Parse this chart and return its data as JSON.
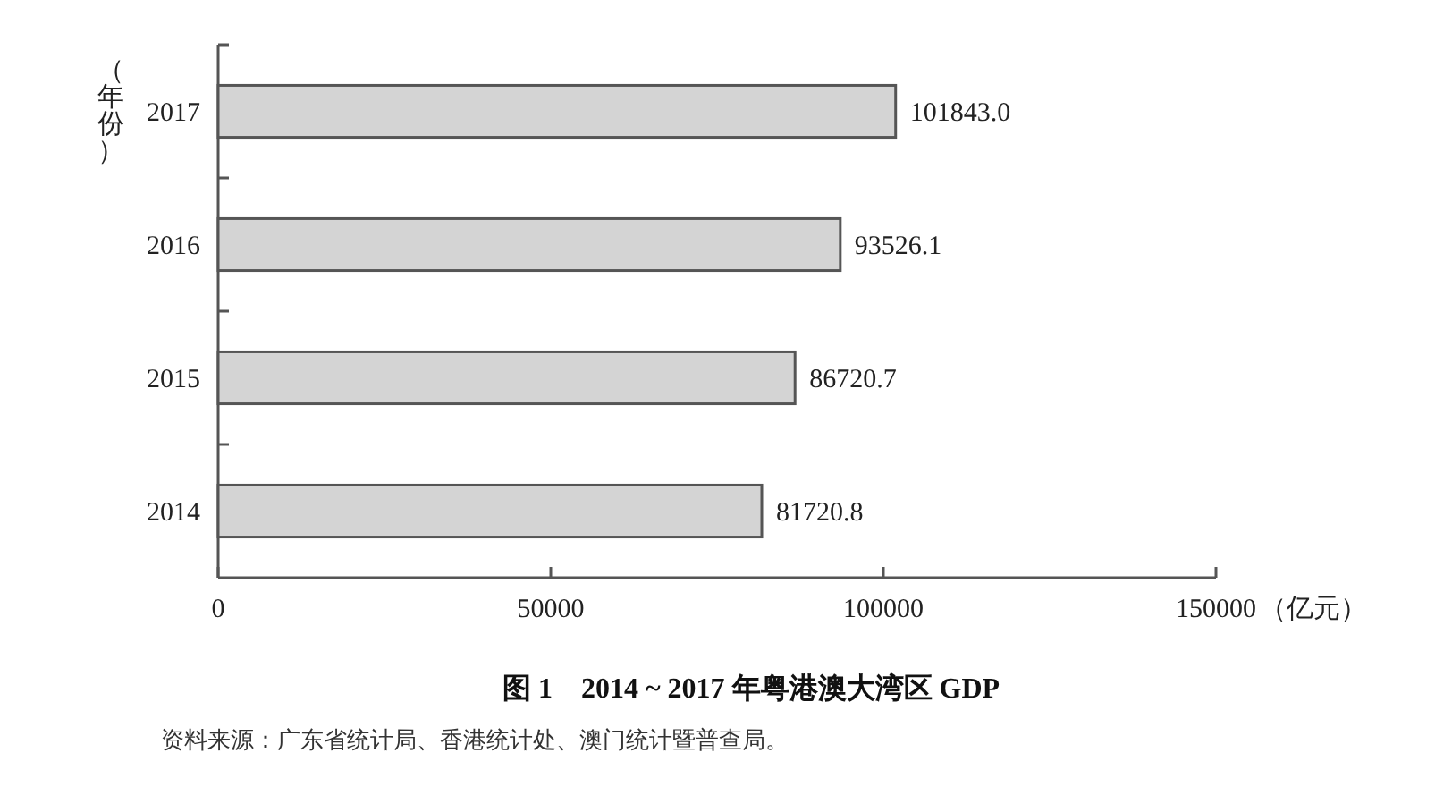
{
  "chart_data": {
    "type": "bar",
    "orientation": "horizontal",
    "title": "图 1　2014 ~ 2017 年粤港澳大湾区 GDP",
    "xlabel": "（亿元）",
    "ylabel": "（年份）",
    "categories": [
      "2017",
      "2016",
      "2015",
      "2014"
    ],
    "values": [
      101843.0,
      93526.1,
      86720.7,
      81720.8
    ],
    "value_labels": [
      "101843.0",
      "93526.1",
      "86720.7",
      "81720.8"
    ],
    "color": "#d4d4d4",
    "xlim": [
      0,
      150000
    ],
    "xticks": [
      0,
      50000,
      100000,
      150000
    ],
    "annotations": [
      "资料来源：广东省统计局、香港统计处、澳门统计暨普查局。"
    ]
  }
}
